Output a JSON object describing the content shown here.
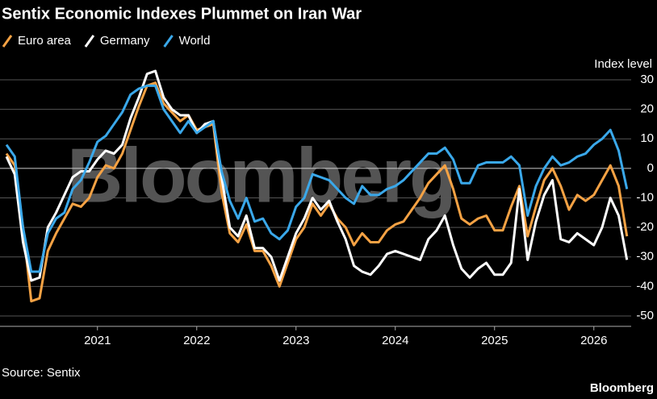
{
  "chart_data": {
    "type": "line",
    "title": "Sentix Economic Indexes Plummet on Iran War",
    "y_axis_label": "Index level",
    "source": "Source: Sentix",
    "watermark": "Bloomberg",
    "brand": "Bloomberg",
    "categories": [
      null,
      null,
      null,
      null,
      null,
      null,
      null,
      null,
      null,
      null,
      null,
      "2021",
      null,
      null,
      null,
      null,
      null,
      null,
      null,
      null,
      null,
      null,
      null,
      "2022",
      null,
      null,
      null,
      null,
      null,
      null,
      null,
      null,
      null,
      null,
      null,
      "2023",
      null,
      null,
      null,
      null,
      null,
      null,
      null,
      null,
      null,
      null,
      null,
      "2024",
      null,
      null,
      null,
      null,
      null,
      null,
      null,
      null,
      null,
      null,
      null,
      "2025",
      null,
      null,
      null,
      null,
      null,
      null,
      null,
      null,
      null,
      null,
      null,
      "2026",
      null,
      null,
      null,
      null
    ],
    "ylim": [
      -53.5,
      32
    ],
    "yticks": [
      30,
      20,
      10,
      0,
      -10,
      -20,
      -30,
      -40,
      -50
    ],
    "grid": true,
    "series": [
      {
        "name": "Euro area",
        "color": "#f5a244",
        "values": [
          5,
          1,
          -20,
          -45,
          -44,
          -28,
          -22,
          -17,
          -12,
          -13,
          -10,
          -3,
          1,
          0,
          5,
          13,
          21,
          28,
          29,
          22,
          19,
          16,
          18,
          13,
          14,
          15,
          -8,
          -22,
          -25,
          -19,
          -28,
          -28,
          -33,
          -40,
          -32,
          -24,
          -20,
          -12,
          -16,
          -12,
          -17,
          -20,
          -26,
          -22,
          -25,
          -25,
          -21,
          -19,
          -18,
          -14,
          -10,
          -5,
          -2,
          1,
          -7,
          -17,
          -19,
          -17,
          -16,
          -21,
          -21,
          -13,
          -6,
          -23,
          -13,
          -4,
          0,
          -6,
          -14,
          -9,
          -11,
          -9,
          -4,
          1,
          -6,
          -23
        ]
      },
      {
        "name": "Germany",
        "color": "#ffffff",
        "values": [
          4,
          -2,
          -25,
          -38,
          -37,
          -20,
          -15,
          -9,
          -3,
          -1,
          -1,
          3,
          6,
          5,
          8,
          17,
          24,
          32,
          33,
          24,
          20,
          18,
          18,
          12,
          15,
          16,
          -3,
          -20,
          -23,
          -16,
          -27,
          -27,
          -30,
          -38,
          -30,
          -22,
          -17,
          -10,
          -14,
          -11,
          -18,
          -24,
          -33,
          -35,
          -36,
          -33,
          -29,
          -28,
          -29,
          -30,
          -31,
          -24,
          -21,
          -16,
          -26,
          -34,
          -37,
          -34,
          -32,
          -36,
          -36,
          -32,
          -7,
          -31,
          -18,
          -9,
          -4,
          -24,
          -25,
          -22,
          -24,
          -26,
          -20,
          -10,
          -16,
          -31
        ]
      },
      {
        "name": "World",
        "color": "#3aa8ea",
        "values": [
          8,
          4,
          -20,
          -35,
          -35,
          -22,
          -17,
          -15,
          -7,
          -4,
          2,
          9,
          11,
          15,
          19,
          25,
          27,
          28,
          28,
          20,
          16,
          12,
          16,
          12,
          14,
          16,
          -1,
          -11,
          -17,
          -10,
          -18,
          -17,
          -22,
          -24,
          -21,
          -13,
          -10,
          -2,
          -3,
          -4,
          -7,
          -10,
          -12,
          -6,
          -9,
          -9,
          -7,
          -6,
          -4,
          -1,
          2,
          5,
          5,
          7,
          3,
          -5,
          -5,
          1,
          2,
          2,
          2,
          4,
          1,
          -16,
          -6,
          0,
          4,
          1,
          2,
          4,
          5,
          8,
          10,
          13,
          6,
          -7
        ]
      }
    ]
  }
}
